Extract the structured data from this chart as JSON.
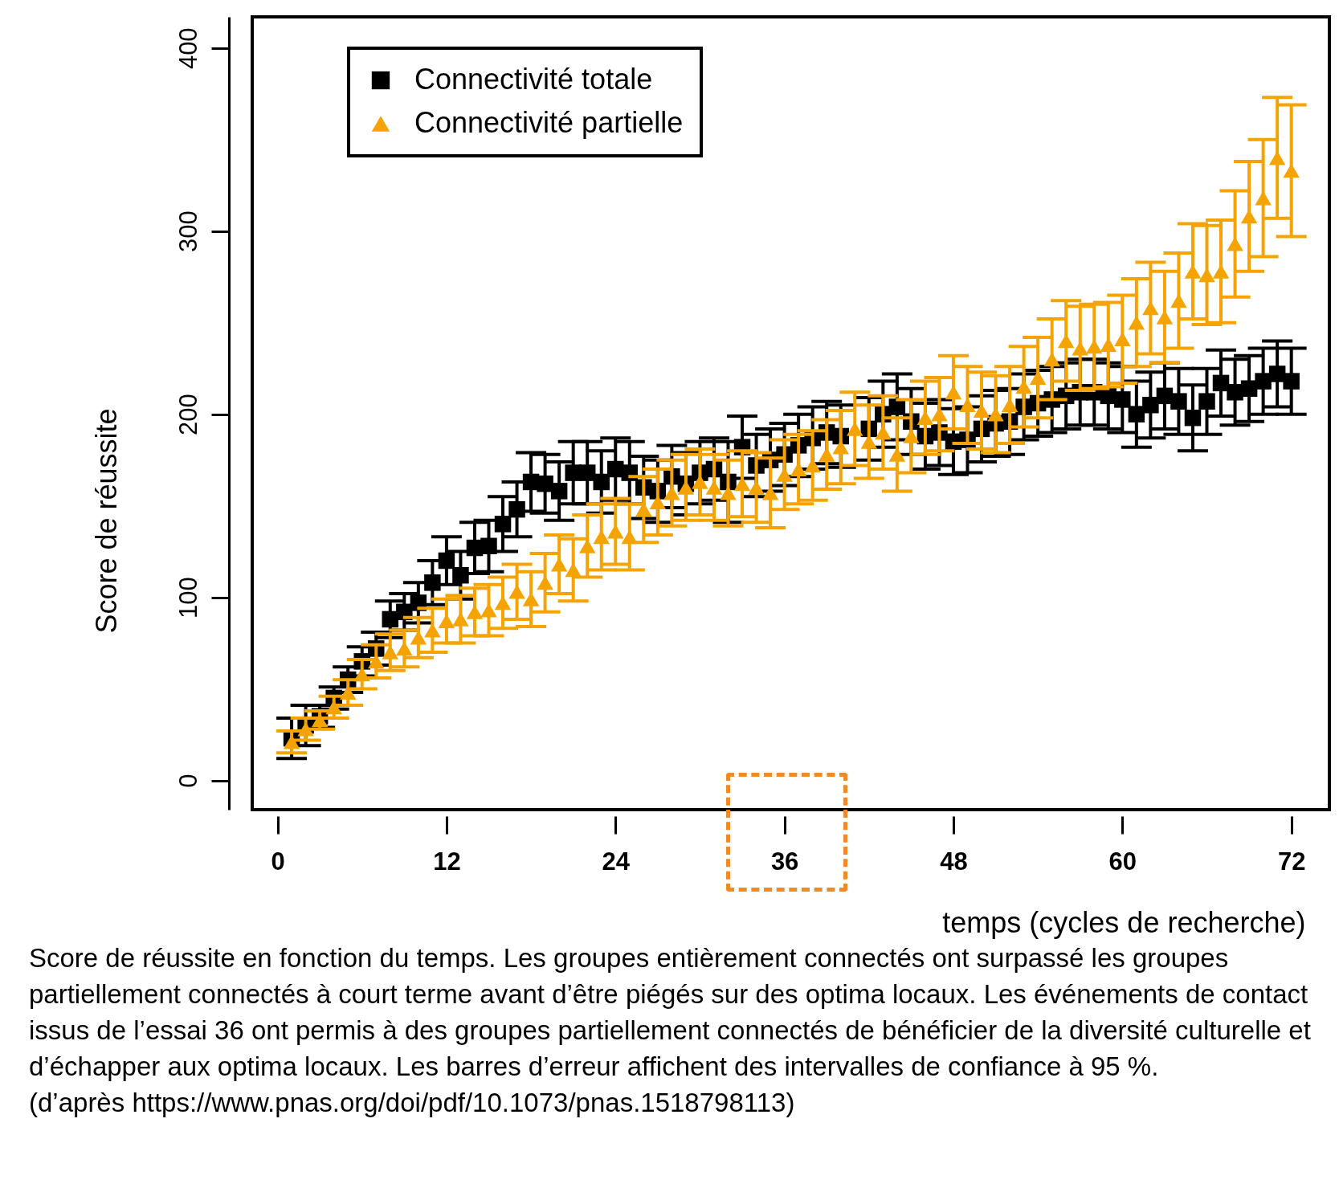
{
  "chart_data": {
    "type": "scatter",
    "xlabel": "temps (cycles de recherche)",
    "ylabel": "Score de réussite",
    "x": [
      1,
      2,
      3,
      4,
      5,
      6,
      7,
      8,
      9,
      10,
      11,
      12,
      13,
      14,
      15,
      16,
      17,
      18,
      19,
      20,
      21,
      22,
      23,
      24,
      25,
      26,
      27,
      28,
      29,
      30,
      31,
      32,
      33,
      34,
      35,
      36,
      37,
      38,
      39,
      40,
      41,
      42,
      43,
      44,
      45,
      46,
      47,
      48,
      49,
      50,
      51,
      52,
      53,
      54,
      55,
      56,
      57,
      58,
      59,
      60,
      61,
      62,
      63,
      64,
      65,
      66,
      67,
      68,
      69,
      70,
      71,
      72
    ],
    "series": [
      {
        "name": "Connectivité totale",
        "color": "#000000",
        "marker": "square",
        "values": [
          23,
          30,
          35,
          45,
          55,
          65,
          72,
          88,
          92,
          97,
          108,
          120,
          112,
          127,
          128,
          140,
          148,
          163,
          162,
          158,
          168,
          168,
          163,
          170,
          168,
          160,
          158,
          166,
          162,
          168,
          170,
          163,
          182,
          172,
          175,
          178,
          183,
          187,
          190,
          188,
          null,
          192,
          200,
          204,
          196,
          188,
          190,
          185,
          186,
          192,
          195,
          196,
          204,
          206,
          208,
          210,
          212,
          212,
          210,
          208,
          200,
          205,
          210,
          207,
          198,
          207,
          217,
          212,
          214,
          218,
          222,
          218
        ],
        "errors": [
          11,
          11,
          6,
          6,
          7,
          8,
          9,
          10,
          10,
          11,
          12,
          13,
          13,
          14,
          14,
          15,
          15,
          16,
          16,
          16,
          17,
          17,
          17,
          17,
          17,
          17,
          17,
          17,
          17,
          17,
          17,
          22,
          17,
          17,
          17,
          17,
          17,
          17,
          17,
          17,
          null,
          17,
          18,
          18,
          18,
          18,
          18,
          18,
          18,
          18,
          18,
          18,
          18,
          18,
          18,
          18,
          18,
          18,
          18,
          18,
          18,
          18,
          18,
          18,
          18,
          18,
          18,
          18,
          18,
          18,
          18,
          18
        ]
      },
      {
        "name": "Connectivité partielle",
        "color": "#f5a300",
        "marker": "triangle",
        "values": [
          21,
          28,
          33,
          40,
          48,
          58,
          65,
          70,
          72,
          78,
          82,
          87,
          88,
          92,
          93,
          97,
          103,
          99,
          108,
          118,
          115,
          128,
          133,
          136,
          133,
          148,
          152,
          157,
          160,
          163,
          160,
          157,
          162,
          160,
          157,
          167,
          170,
          172,
          178,
          182,
          192,
          185,
          190,
          178,
          188,
          198,
          200,
          212,
          205,
          202,
          200,
          205,
          215,
          220,
          230,
          240,
          236,
          237,
          238,
          241,
          250,
          258,
          253,
          262,
          278,
          276,
          278,
          293,
          308,
          318,
          340,
          333
        ],
        "errors": [
          6,
          6,
          5,
          6,
          7,
          8,
          9,
          10,
          10,
          11,
          12,
          12,
          13,
          13,
          14,
          14,
          15,
          15,
          16,
          16,
          17,
          17,
          18,
          18,
          18,
          18,
          18,
          18,
          18,
          18,
          18,
          18,
          18,
          19,
          19,
          19,
          19,
          19,
          19,
          20,
          20,
          20,
          20,
          20,
          20,
          20,
          20,
          20,
          21,
          21,
          21,
          21,
          22,
          22,
          22,
          22,
          23,
          23,
          23,
          24,
          24,
          25,
          25,
          26,
          26,
          27,
          28,
          29,
          30,
          32,
          33,
          36
        ]
      }
    ],
    "xlim": [
      -1.8,
      74.7
    ],
    "xticks": [
      0,
      12,
      24,
      36,
      48,
      60,
      72
    ],
    "ylim": [
      -16,
      417
    ],
    "yticks": [
      0,
      100,
      200,
      300,
      400
    ],
    "legend": "top left",
    "grid": false,
    "annotations": [
      "Score de réussite en fonction du temps. Les groupes entièrement connectés ont surpassé les groupes partiellement connectés à court terme avant d’être piégés sur des optima locaux. Les événements de contact issus de l’essai 36 ont permis à des groupes partiellement connectés de bénéficier de la diversité culturelle et d’échapper aux optima locaux. Les barres d’erreur affichent des intervalles de confiance à 95 %.",
      "(d’après https://www.pnas.org/doi/pdf/10.1073/pnas.1518798113)"
    ]
  }
}
